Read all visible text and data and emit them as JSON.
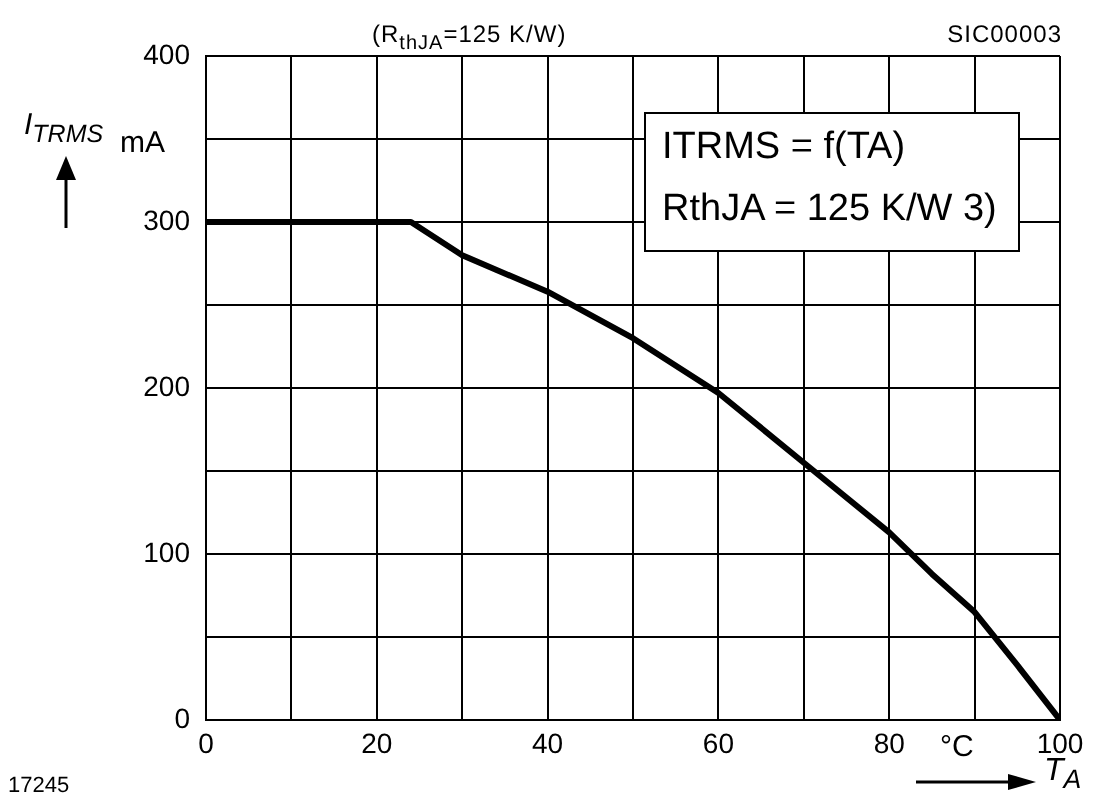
{
  "chart_data": {
    "type": "line",
    "subtitle": "(R$_{thJA}$=125 K/W)",
    "xlabel": "T$_{A}$",
    "ylabel": "I$_{TRMS}$",
    "x": [
      0,
      24,
      30,
      40,
      50,
      60,
      70,
      80,
      85,
      90,
      95,
      100
    ],
    "series": [
      {
        "color": "#000000",
        "values": [
          300,
          300,
          280,
          258,
          230,
          197,
          155,
          113,
          88,
          65,
          33,
          0
        ]
      }
    ],
    "xlim": [
      0,
      100
    ],
    "ylim": [
      0,
      400
    ],
    "xticks": [
      0,
      {
        "value": 10,
        "label": null
      },
      20,
      {
        "value": 30,
        "label": null
      },
      40,
      {
        "value": 50,
        "label": null
      },
      60,
      {
        "value": 70,
        "label": null
      },
      80,
      {
        "value": 90,
        "label": null
      },
      100
    ],
    "yticks": [
      0,
      {
        "value": 50,
        "label": null
      },
      100,
      {
        "value": 150,
        "label": null
      },
      200,
      {
        "value": 250,
        "label": null
      },
      300,
      {
        "value": 350,
        "label": null
      },
      400
    ],
    "grid": true,
    "marker": "none",
    "line_style": "solid",
    "annotations": [
      "mA",
      "°C",
      "SIC00003",
      "17245",
      "ITRMS = f(TA)",
      "RthJA = 125 K/W 3)"
    ]
  }
}
